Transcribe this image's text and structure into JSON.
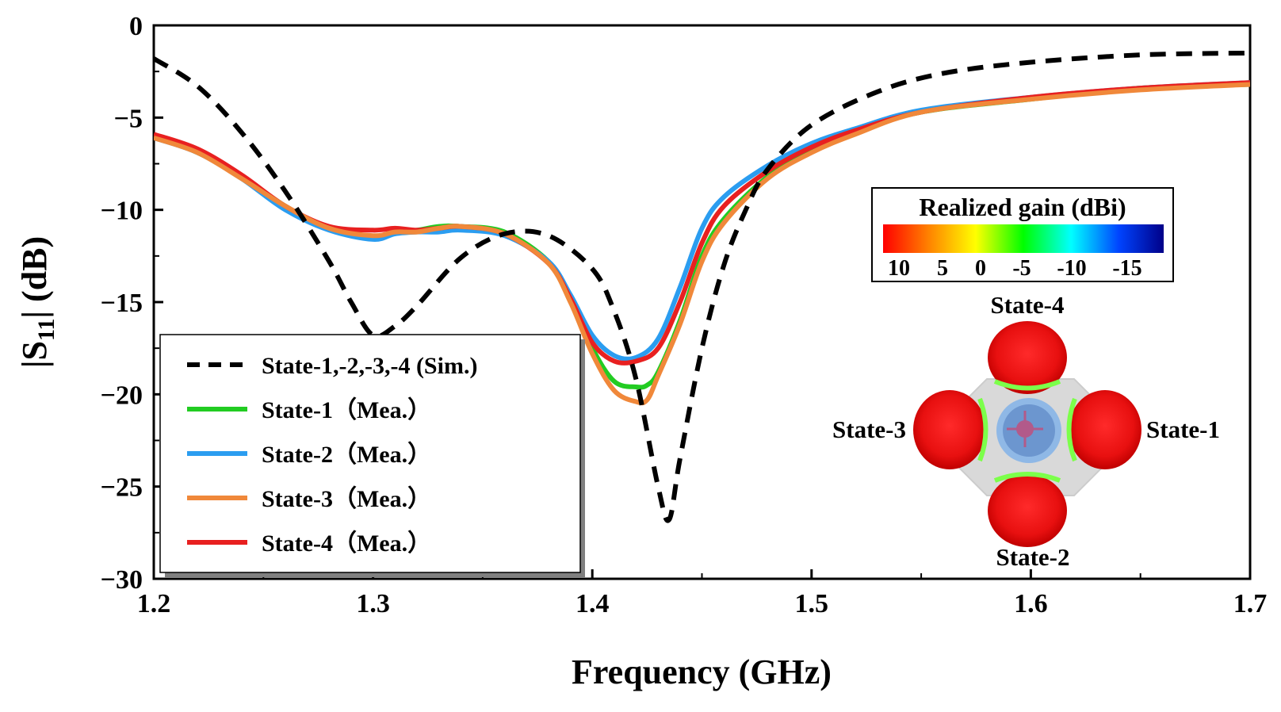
{
  "chart_data": {
    "type": "line",
    "title": "",
    "xlabel": "Frequency (GHz)",
    "ylabel_main": "|S",
    "ylabel_sub": "11",
    "ylabel_tail": "| (dB)",
    "xlim": [
      1.2,
      1.7
    ],
    "ylim": [
      -30,
      0
    ],
    "xticks": [
      1.2,
      1.3,
      1.4,
      1.5,
      1.6,
      1.7
    ],
    "xtick_labels": [
      "1.2",
      "1.3",
      "1.4",
      "1.5",
      "1.6",
      "1.7"
    ],
    "yticks": [
      0,
      -5,
      -10,
      -15,
      -20,
      -25,
      -30
    ],
    "ytick_labels": [
      "0",
      "−5",
      "−10",
      "−15",
      "−20",
      "−25",
      "−30"
    ],
    "grid": false,
    "legend_position": "bottom-left",
    "series": [
      {
        "name": "State-1,-2,-3,-4 (Sim.)",
        "color": "#000000",
        "dashed": true,
        "x": [
          1.2,
          1.22,
          1.24,
          1.26,
          1.28,
          1.29,
          1.3,
          1.31,
          1.32,
          1.34,
          1.36,
          1.38,
          1.4,
          1.41,
          1.42,
          1.43,
          1.435,
          1.44,
          1.45,
          1.46,
          1.47,
          1.48,
          1.5,
          1.53,
          1.56,
          1.6,
          1.65,
          1.7
        ],
        "y": [
          -1.8,
          -3.3,
          -5.8,
          -9.0,
          -12.8,
          -15.0,
          -16.8,
          -16.3,
          -15.2,
          -12.6,
          -11.3,
          -11.4,
          -13.2,
          -15.5,
          -19.2,
          -25.0,
          -26.8,
          -23.5,
          -17.5,
          -13.0,
          -10.0,
          -7.8,
          -5.4,
          -3.6,
          -2.6,
          -2.0,
          -1.6,
          -1.5
        ]
      },
      {
        "name": "State-1（Mea.）",
        "color": "#22cc22",
        "dashed": false,
        "x": [
          1.2,
          1.22,
          1.24,
          1.26,
          1.28,
          1.3,
          1.31,
          1.32,
          1.33,
          1.34,
          1.36,
          1.38,
          1.39,
          1.4,
          1.41,
          1.42,
          1.425,
          1.43,
          1.44,
          1.45,
          1.46,
          1.48,
          1.5,
          1.52,
          1.55,
          1.6,
          1.65,
          1.7
        ],
        "y": [
          -6.0,
          -6.9,
          -8.2,
          -9.8,
          -11.0,
          -11.5,
          -11.2,
          -11.1,
          -10.9,
          -10.9,
          -11.2,
          -12.8,
          -14.8,
          -17.5,
          -19.3,
          -19.6,
          -19.5,
          -18.8,
          -16.0,
          -12.5,
          -10.5,
          -8.2,
          -6.8,
          -5.8,
          -4.7,
          -4.0,
          -3.4,
          -3.2
        ]
      },
      {
        "name": "State-2（Mea.）",
        "color": "#2b9df0",
        "dashed": false,
        "x": [
          1.2,
          1.22,
          1.24,
          1.26,
          1.28,
          1.3,
          1.31,
          1.32,
          1.33,
          1.34,
          1.36,
          1.38,
          1.39,
          1.4,
          1.41,
          1.42,
          1.43,
          1.44,
          1.45,
          1.46,
          1.48,
          1.5,
          1.52,
          1.55,
          1.6,
          1.65,
          1.7
        ],
        "y": [
          -6.1,
          -6.9,
          -8.3,
          -10.0,
          -11.1,
          -11.6,
          -11.3,
          -11.2,
          -11.2,
          -11.1,
          -11.4,
          -12.8,
          -14.6,
          -16.8,
          -17.9,
          -18.0,
          -17.0,
          -14.2,
          -11.0,
          -9.3,
          -7.6,
          -6.4,
          -5.6,
          -4.6,
          -3.9,
          -3.4,
          -3.1
        ]
      },
      {
        "name": "State-3（Mea.）",
        "color": "#f0883a",
        "dashed": false,
        "x": [
          1.2,
          1.22,
          1.24,
          1.26,
          1.28,
          1.3,
          1.31,
          1.32,
          1.33,
          1.34,
          1.36,
          1.38,
          1.39,
          1.4,
          1.41,
          1.42,
          1.425,
          1.43,
          1.44,
          1.45,
          1.46,
          1.48,
          1.5,
          1.52,
          1.55,
          1.6,
          1.65,
          1.7
        ],
        "y": [
          -6.1,
          -6.9,
          -8.3,
          -9.8,
          -11.0,
          -11.4,
          -11.2,
          -11.2,
          -11.0,
          -10.9,
          -11.3,
          -12.9,
          -15.0,
          -17.8,
          -19.8,
          -20.4,
          -20.3,
          -19.0,
          -16.2,
          -12.8,
          -10.7,
          -8.3,
          -6.9,
          -5.9,
          -4.7,
          -4.0,
          -3.5,
          -3.2
        ]
      },
      {
        "name": "State-4（Mea.）",
        "color": "#e82020",
        "dashed": false,
        "x": [
          1.2,
          1.22,
          1.24,
          1.26,
          1.28,
          1.3,
          1.31,
          1.32,
          1.33,
          1.34,
          1.36,
          1.38,
          1.39,
          1.4,
          1.41,
          1.42,
          1.43,
          1.44,
          1.45,
          1.46,
          1.48,
          1.5,
          1.52,
          1.55,
          1.6,
          1.65,
          1.7
        ],
        "y": [
          -5.9,
          -6.7,
          -8.1,
          -9.8,
          -10.9,
          -11.1,
          -11.0,
          -11.1,
          -11.0,
          -10.9,
          -11.3,
          -12.9,
          -14.8,
          -17.2,
          -18.2,
          -18.2,
          -17.5,
          -15.0,
          -11.8,
          -9.8,
          -7.9,
          -6.6,
          -5.7,
          -4.7,
          -3.9,
          -3.4,
          -3.1
        ]
      }
    ],
    "inset": {
      "colorbar_title": "Realized gain (dBi)",
      "colorbar_ticks": [
        "10",
        "5",
        "0",
        "-5",
        "-10",
        "-15"
      ],
      "colorbar_colors": [
        "#ff0000",
        "#ff8800",
        "#ffff00",
        "#00ff00",
        "#00ffff",
        "#0044ff",
        "#000088"
      ],
      "labels": {
        "top": "State-4",
        "right": "State-1",
        "bottom": "State-2",
        "left": "State-3"
      }
    }
  }
}
